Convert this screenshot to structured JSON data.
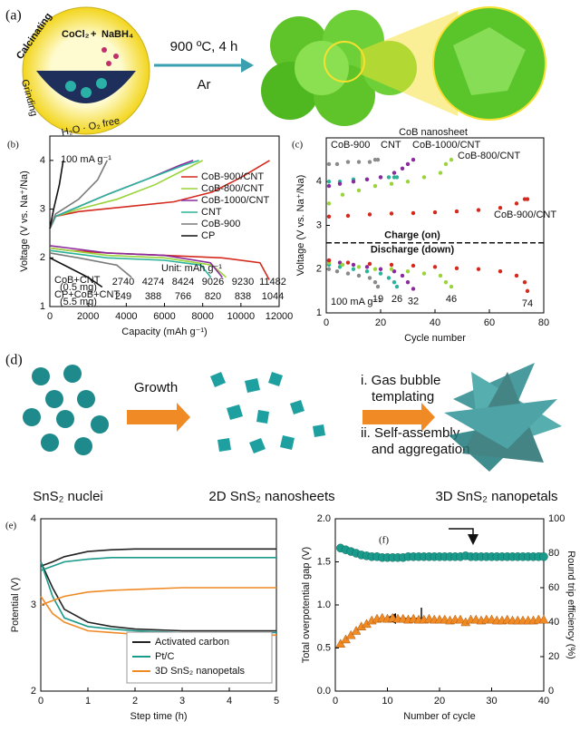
{
  "panel_a": {
    "label": "(a)",
    "reagent_1": "CoCl₂",
    "plus": "+",
    "reagent_2": "NaBH₄",
    "process_1": "Calcinating",
    "process_2": "Grinding",
    "process_3": "H₂O · O₂ free",
    "condition": "900 ºC, 4 h",
    "gas": "Ar",
    "product": "CoB nanosheet"
  },
  "panel_d": {
    "label": "(d)",
    "step_1": "Growth",
    "step_2": [
      "i.  Gas bubble",
      "templating"
    ],
    "step_3": [
      "ii. Self-assembly",
      "and aggregation"
    ],
    "stage_1": "SnS₂ nuclei",
    "stage_2": "2D SnS₂ nanosheets",
    "stage_3": "3D SnS₂ nanopetals"
  },
  "chart_data": [
    {
      "panel_label": "(b)",
      "type": "line",
      "annotation": "100 mA g⁻¹",
      "xlabel": "Capacity (mAh g⁻¹)",
      "ylabel": "Voltage (V vs. Na⁺/Na)",
      "xlim": [
        0,
        12000
      ],
      "xticks": [
        0,
        2000,
        4000,
        6000,
        8000,
        10000,
        12000
      ],
      "ylim": [
        1,
        4.5
      ],
      "yticks": [
        1,
        2,
        3,
        4
      ],
      "legend": "upper right",
      "series": [
        {
          "name": "CoB-900/CNT",
          "color": "#d42a1e",
          "x": [
            0,
            1000,
            3000,
            6000,
            9000,
            11000,
            11482,
            null,
            0,
            300,
            1500,
            4000,
            6500,
            8500,
            10000,
            11500
          ],
          "values": [
            2.2,
            2.15,
            2.1,
            2.05,
            2.0,
            1.9,
            1.55,
            null,
            2.6,
            2.85,
            2.95,
            3.05,
            3.15,
            3.35,
            3.65,
            4.0
          ]
        },
        {
          "name": "CoB-800/CNT",
          "color": "#9ad43a",
          "x": [
            0,
            1000,
            3000,
            6000,
            8500,
            9230,
            null,
            0,
            300,
            1500,
            3500,
            5500,
            7000,
            8000
          ],
          "values": [
            2.2,
            2.15,
            2.05,
            2.0,
            1.85,
            1.6,
            null,
            2.6,
            2.85,
            3.0,
            3.2,
            3.5,
            3.8,
            4.0
          ]
        },
        {
          "name": "CoB-1000/CNT",
          "color": "#8a2a9e",
          "x": [
            0,
            1000,
            3000,
            6000,
            8400,
            9026,
            null,
            0,
            300,
            1500,
            3000,
            5000,
            6800,
            7500
          ],
          "values": [
            2.25,
            2.2,
            2.1,
            2.05,
            1.9,
            1.6,
            null,
            2.6,
            2.85,
            3.05,
            3.3,
            3.6,
            3.9,
            4.0
          ]
        },
        {
          "name": "CNT",
          "color": "#2ab39a",
          "x": [
            0,
            1000,
            3000,
            6000,
            7900,
            8424,
            null,
            0,
            300,
            1500,
            3000,
            5000,
            7000,
            7800
          ],
          "values": [
            2.15,
            2.1,
            2.0,
            1.95,
            1.85,
            1.6,
            null,
            2.6,
            2.85,
            3.05,
            3.3,
            3.6,
            3.9,
            4.0
          ]
        },
        {
          "name": "CoB-900",
          "color": "#7a7a7a",
          "x": [
            0,
            1500,
            3500,
            4274,
            null,
            0,
            300,
            1500,
            2500,
            3000
          ],
          "values": [
            2.1,
            2.0,
            1.85,
            1.6,
            null,
            2.6,
            2.9,
            3.2,
            3.6,
            4.0
          ]
        },
        {
          "name": "CP",
          "color": "#111111",
          "x": [
            0,
            1000,
            2000,
            2740,
            null,
            0,
            200,
            500,
            700
          ],
          "values": [
            2.0,
            1.8,
            1.6,
            1.4,
            null,
            2.6,
            3.0,
            3.5,
            4.0
          ]
        }
      ],
      "table": {
        "unit": "Unit: mAh g⁻¹",
        "rows": [
          {
            "label": "CoB+CNT",
            "sublabel": "(0.5 mg)",
            "values": [
              "2740",
              "4274",
              "8424",
              "9026",
              "9230",
              "11482"
            ]
          },
          {
            "label": "CP+CoB+CNT",
            "sublabel": "(5.5 mg)",
            "values": [
              "249",
              "388",
              "766",
              "820",
              "838",
              "1044"
            ]
          }
        ]
      }
    },
    {
      "panel_label": "(c)",
      "type": "scatter",
      "annotation": "100 mA g⁻¹",
      "charge_label": "Charge (on)",
      "discharge_label": "Discharge (down)",
      "divider": 2.6,
      "xlabel": "Cycle number",
      "ylabel": "Voltage (V vs. Na⁺/Na)",
      "xlim": [
        0,
        80
      ],
      "xticks": [
        0,
        20,
        40,
        60,
        80
      ],
      "ylim": [
        1,
        5
      ],
      "yticks": [
        1,
        2,
        3,
        4
      ],
      "series": [
        {
          "name": "CoB-900",
          "color": "#8a8a8a",
          "end_label": "19",
          "x": [
            1,
            4,
            8,
            12,
            16,
            18,
            19
          ],
          "charge": [
            4.4,
            4.4,
            4.45,
            4.45,
            4.45,
            4.5,
            4.5
          ],
          "discharge": [
            2.0,
            1.95,
            1.9,
            1.85,
            1.8,
            1.7,
            1.6
          ]
        },
        {
          "name": "CNT",
          "color": "#2ab39a",
          "end_label": "26",
          "x": [
            1,
            5,
            10,
            15,
            20,
            23,
            25,
            26
          ],
          "charge": [
            4.0,
            4.0,
            4.05,
            4.05,
            4.1,
            4.1,
            4.1,
            4.1
          ],
          "discharge": [
            2.1,
            2.05,
            2.0,
            1.95,
            1.9,
            1.8,
            1.7,
            1.6
          ]
        },
        {
          "name": "CoB-1000/CNT",
          "color": "#8a2a9e",
          "end_label": "32",
          "x": [
            1,
            5,
            10,
            15,
            20,
            25,
            28,
            30,
            32
          ],
          "charge": [
            3.9,
            3.95,
            4.0,
            4.05,
            4.1,
            4.2,
            4.3,
            4.4,
            4.5
          ],
          "discharge": [
            2.2,
            2.15,
            2.1,
            2.05,
            2.0,
            1.95,
            1.85,
            1.7,
            1.55
          ]
        },
        {
          "name": "CoB-800/CNT",
          "color": "#9ad43a",
          "end_label": "46",
          "x": [
            1,
            6,
            12,
            18,
            24,
            30,
            36,
            42,
            44,
            46
          ],
          "charge": [
            3.5,
            3.7,
            3.8,
            3.9,
            3.95,
            4.0,
            4.1,
            4.2,
            4.4,
            4.5
          ],
          "discharge": [
            2.15,
            2.1,
            2.05,
            2.0,
            2.0,
            1.95,
            1.9,
            1.85,
            1.7,
            1.6
          ]
        },
        {
          "name": "CoB-900/CNT",
          "color": "#d42a1e",
          "end_label": "74",
          "x": [
            1,
            8,
            16,
            24,
            32,
            40,
            48,
            56,
            64,
            70,
            73,
            74
          ],
          "charge": [
            3.2,
            3.22,
            3.25,
            3.27,
            3.28,
            3.3,
            3.32,
            3.35,
            3.4,
            3.5,
            3.6,
            3.6
          ],
          "discharge": [
            2.2,
            2.15,
            2.12,
            2.1,
            2.08,
            2.05,
            2.02,
            2.0,
            1.95,
            1.85,
            1.7,
            1.5
          ]
        }
      ]
    },
    {
      "panel_label": "(e)",
      "type": "line",
      "xlabel": "Step time (h)",
      "ylabel": "Potential (V)",
      "xlim": [
        0,
        5
      ],
      "xticks": [
        0,
        1,
        2,
        3,
        4,
        5
      ],
      "ylim": [
        2,
        4
      ],
      "yticks": [
        2,
        3,
        4
      ],
      "legend": "lower right",
      "x": [
        0,
        0.25,
        0.5,
        1,
        1.5,
        2,
        3,
        4,
        5
      ],
      "series": [
        {
          "name": "Activated carbon",
          "color": "#222222",
          "charge": [
            3.45,
            3.5,
            3.56,
            3.62,
            3.64,
            3.65,
            3.65,
            3.65,
            3.65
          ],
          "discharge": [
            3.5,
            3.2,
            2.95,
            2.8,
            2.75,
            2.72,
            2.7,
            2.7,
            2.7
          ]
        },
        {
          "name": "Pt/C",
          "color": "#1a9a8a",
          "charge": [
            3.4,
            3.45,
            3.5,
            3.53,
            3.55,
            3.55,
            3.55,
            3.55,
            3.55
          ],
          "discharge": [
            3.5,
            3.1,
            2.85,
            2.75,
            2.72,
            2.7,
            2.68,
            2.68,
            2.68
          ]
        },
        {
          "name": "3D SnS₂ nanopetals",
          "color": "#f08a24",
          "charge": [
            3.0,
            3.05,
            3.1,
            3.15,
            3.17,
            3.18,
            3.2,
            3.2,
            3.2
          ],
          "discharge": [
            3.1,
            2.9,
            2.8,
            2.7,
            2.68,
            2.66,
            2.65,
            2.65,
            2.65
          ]
        }
      ]
    },
    {
      "panel_label": "(f)",
      "type": "scatter",
      "xlabel": "Number of cycle",
      "ylabel": "Total overpotential gap (V)",
      "y2label": "Round trip efficiency (%)",
      "xlim": [
        0,
        40
      ],
      "xticks": [
        0,
        10,
        20,
        30,
        40
      ],
      "ylim": [
        0,
        2
      ],
      "yticks": [
        {
          "value": 0,
          "label": "0.0"
        },
        0.5,
        {
          "value": 1,
          "label": "1.0"
        },
        1.5,
        {
          "value": 2,
          "label": "2.0"
        }
      ],
      "y2lim": [
        0,
        100
      ],
      "y2ticks": [
        0,
        20,
        40,
        60,
        80,
        100
      ],
      "x": [
        1,
        2,
        3,
        4,
        5,
        6,
        7,
        8,
        9,
        10,
        11,
        12,
        13,
        14,
        15,
        16,
        17,
        18,
        19,
        20,
        21,
        22,
        23,
        24,
        25,
        26,
        27,
        28,
        29,
        30,
        31,
        32,
        33,
        34,
        35,
        36,
        37,
        38,
        39,
        40
      ],
      "series": [
        {
          "marker": "circle",
          "color": "#1a9a8a",
          "axis": "y2",
          "values": [
            83,
            82,
            81,
            80,
            79,
            78.5,
            78,
            78,
            77.5,
            77.5,
            77.5,
            77.5,
            77.5,
            78,
            78,
            78,
            78,
            78,
            78,
            78,
            78,
            78,
            78,
            78,
            78.5,
            78,
            78,
            78,
            78,
            78,
            78,
            78,
            78,
            78,
            78,
            78,
            78,
            78,
            78,
            78
          ]
        },
        {
          "marker": "triangle",
          "color": "#f08a24",
          "axis": "y",
          "values": [
            0.55,
            0.6,
            0.65,
            0.7,
            0.75,
            0.78,
            0.82,
            0.84,
            0.85,
            0.84,
            0.85,
            0.84,
            0.84,
            0.83,
            0.84,
            0.83,
            0.83,
            0.84,
            0.83,
            0.83,
            0.83,
            0.82,
            0.83,
            0.83,
            0.8,
            0.83,
            0.83,
            0.82,
            0.83,
            0.83,
            0.82,
            0.82,
            0.83,
            0.82,
            0.82,
            0.82,
            0.82,
            0.82,
            0.83,
            0.83
          ]
        }
      ]
    }
  ]
}
